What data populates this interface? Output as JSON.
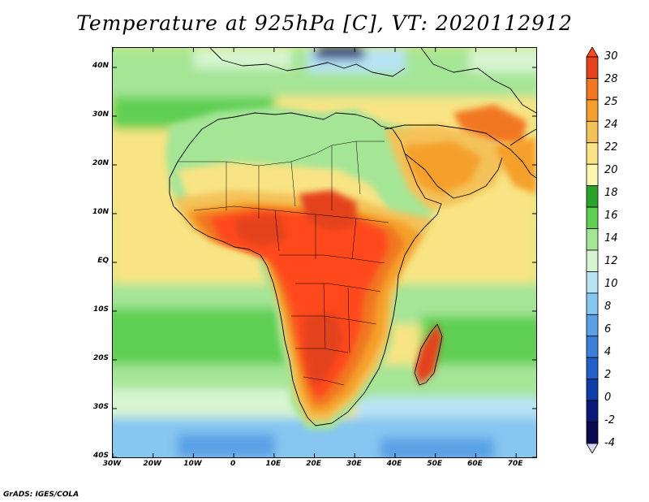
{
  "title": "Temperature at 925hPa [C], VT: 2020112912",
  "variable": "Temperature at 925hPa",
  "units": "C",
  "valid_time": "2020112912",
  "map": {
    "region": "Africa",
    "lat_labels": [
      "40N",
      "30N",
      "20N",
      "10N",
      "EQ",
      "10S",
      "20S",
      "30S",
      "40S"
    ],
    "lat_values": [
      40,
      30,
      20,
      10,
      0,
      -10,
      -20,
      -30,
      -40
    ],
    "lon_labels": [
      "30W",
      "20W",
      "10W",
      "0",
      "10E",
      "20E",
      "30E",
      "40E",
      "50E",
      "60E",
      "70E"
    ],
    "lon_values": [
      -30,
      -20,
      -10,
      0,
      10,
      20,
      30,
      40,
      50,
      60,
      70
    ]
  },
  "colorbar": {
    "levels": [
      "30",
      "28",
      "25",
      "24",
      "22",
      "20",
      "18",
      "16",
      "14",
      "12",
      "10",
      "8",
      "6",
      "4",
      "2",
      "0",
      "-2",
      "-4"
    ],
    "colors": [
      "#ff4a1a",
      "#e4421d",
      "#f27722",
      "#f5a02c",
      "#f4c25a",
      "#f8e484",
      "#fbf7b3",
      "#2aa32a",
      "#5fcf52",
      "#a5e596",
      "#d6f4d0",
      "#b8e3f5",
      "#86c6f0",
      "#5aa1e6",
      "#3c7fd9",
      "#2160c8",
      "#0d3da8",
      "#091a7a",
      "#0a0a4e",
      "#dcd6f5"
    ]
  },
  "credit": "GrADS: IGES/COLA"
}
